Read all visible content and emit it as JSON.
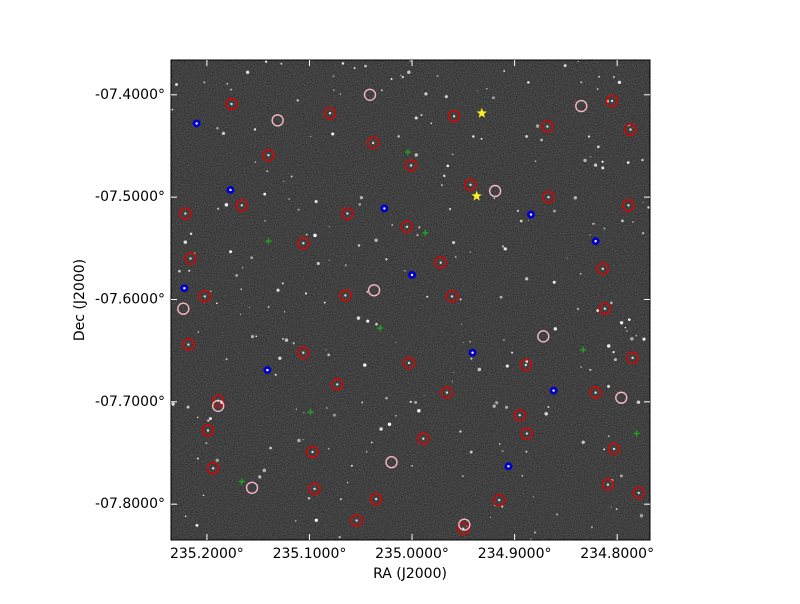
{
  "chart_data": {
    "type": "scatter",
    "x_label": "RA (J2000)",
    "y_label": "Dec (J2000)",
    "xlim": [
      235.235,
      234.768
    ],
    "ylim": [
      -7.835,
      -7.366
    ],
    "xticks": [
      {
        "value": 235.2,
        "label": "235.2000°"
      },
      {
        "value": 235.1,
        "label": "235.1000°"
      },
      {
        "value": 235.0,
        "label": "235.0000°"
      },
      {
        "value": 234.9,
        "label": "234.9000°"
      },
      {
        "value": 234.8,
        "label": "234.8000°"
      }
    ],
    "yticks": [
      {
        "value": -7.4,
        "label": "-07.4000°"
      },
      {
        "value": -7.5,
        "label": "-07.5000°"
      },
      {
        "value": -7.6,
        "label": "-07.6000°"
      },
      {
        "value": -7.7,
        "label": "-07.7000°"
      },
      {
        "value": -7.8,
        "label": "-07.8000°"
      }
    ],
    "series": [
      {
        "color": "#e00000",
        "marker": "ring",
        "x": [
          235.176,
          235.08,
          235.001,
          234.959,
          234.868,
          234.805,
          235.221,
          235.166,
          235.063,
          234.943,
          234.867,
          234.789,
          235.216,
          235.106,
          235.005,
          234.972,
          234.814,
          235.202,
          235.065,
          234.961,
          234.812,
          235.218,
          235.106,
          235.003,
          234.889,
          234.785,
          235.189,
          235.073,
          234.966,
          234.895,
          234.821,
          235.199,
          235.097,
          234.989,
          234.888,
          234.803,
          235.194,
          235.095,
          235.035,
          234.915,
          234.809,
          235.054,
          234.95,
          234.779,
          235.14,
          235.038,
          234.787
        ],
        "values": [
          -7.409,
          -7.418,
          -7.469,
          -7.421,
          -7.431,
          -7.406,
          -7.516,
          -7.508,
          -7.516,
          -7.488,
          -7.5,
          -7.508,
          -7.56,
          -7.545,
          -7.529,
          -7.564,
          -7.57,
          -7.597,
          -7.596,
          -7.597,
          -7.609,
          -7.644,
          -7.652,
          -7.662,
          -7.664,
          -7.657,
          -7.699,
          -7.683,
          -7.691,
          -7.713,
          -7.691,
          -7.728,
          -7.749,
          -7.736,
          -7.731,
          -7.746,
          -7.765,
          -7.785,
          -7.795,
          -7.796,
          -7.781,
          -7.816,
          -7.824,
          -7.789,
          -7.459,
          -7.447,
          -7.434
        ]
      },
      {
        "color": "#f4b8c4",
        "marker": "circle",
        "x": [
          235.131,
          235.041,
          234.919,
          235.223,
          235.037,
          234.872,
          235.189,
          235.02,
          234.949,
          234.796,
          234.835,
          235.156
        ],
        "values": [
          -7.425,
          -7.4,
          -7.494,
          -7.609,
          -7.591,
          -7.636,
          -7.704,
          -7.759,
          -7.82,
          -7.696,
          -7.411,
          -7.784
        ]
      },
      {
        "color": "#0000c8",
        "marker": "dot",
        "x": [
          235.21,
          235.177,
          235.027,
          235.0,
          235.222,
          235.141,
          234.941,
          234.862,
          234.906,
          234.821,
          234.884
        ],
        "values": [
          -7.428,
          -7.493,
          -7.511,
          -7.576,
          -7.589,
          -7.669,
          -7.652,
          -7.689,
          -7.763,
          -7.543,
          -7.517
        ]
      },
      {
        "color": "#1fa01f",
        "marker": "plus",
        "x": [
          235.004,
          235.14,
          234.987,
          235.031,
          234.833,
          235.099,
          234.781,
          235.166
        ],
        "values": [
          -7.456,
          -7.543,
          -7.535,
          -7.628,
          -7.649,
          -7.71,
          -7.731,
          -7.778
        ]
      },
      {
        "color": "#ffee22",
        "marker": "star",
        "x": [
          234.932,
          234.937
        ],
        "values": [
          -7.418,
          -7.499
        ]
      }
    ]
  }
}
